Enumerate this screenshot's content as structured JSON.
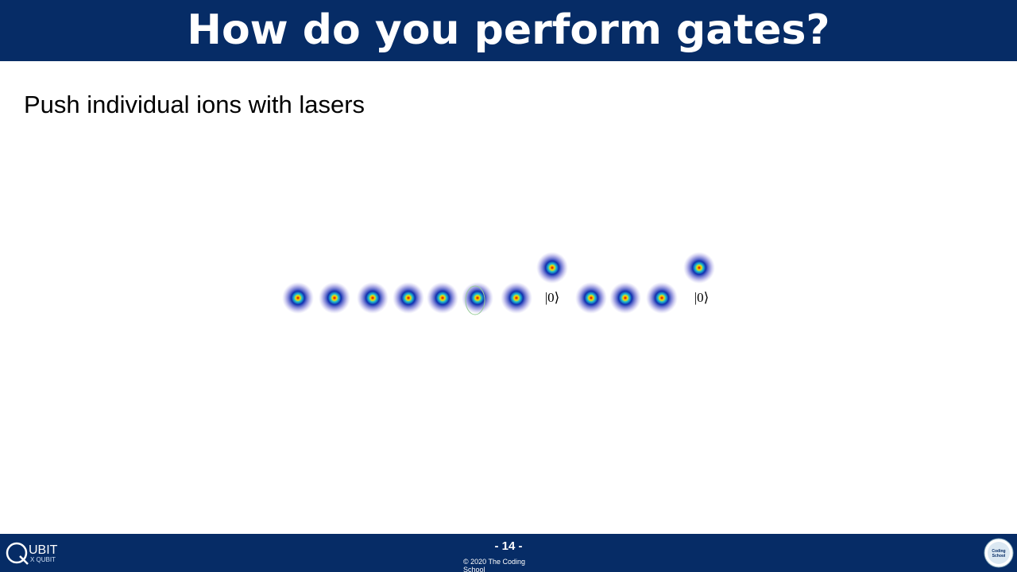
{
  "header": {
    "title": "How do you perform gates?"
  },
  "body": {
    "text": "Push individual ions with lasers"
  },
  "diagram": {
    "state_labels": [
      "|0⟩",
      "|0⟩"
    ]
  },
  "footer": {
    "page": "- 14 -",
    "copyright": "© 2020 The Coding School",
    "logo_left": "UBIT",
    "logo_left_sub": "X QUBIT",
    "logo_right": "Coding School"
  }
}
